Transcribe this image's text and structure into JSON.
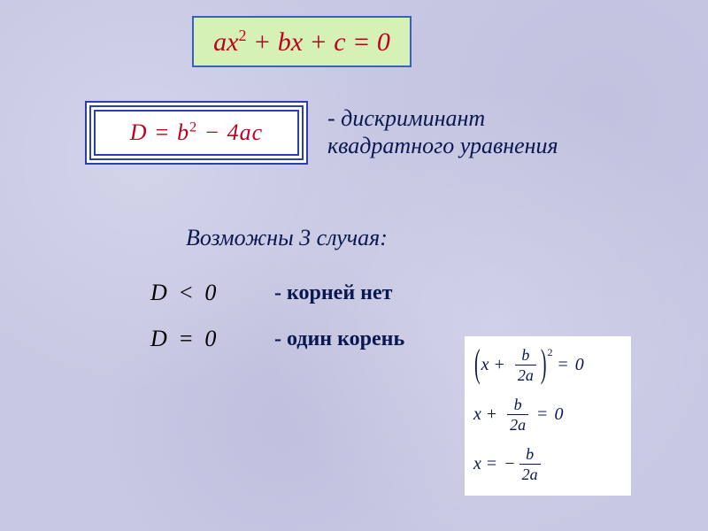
{
  "colors": {
    "background": "#c8c8e4",
    "box_green_bg": "#d5f1b6",
    "box_border": "#3b5fc0",
    "triple_border": "#2b3fb0",
    "equation_red": "#c00020",
    "text_dark_blue": "#0a1850",
    "white": "#ffffff",
    "black": "#000000"
  },
  "fonts": {
    "family": "Times New Roman",
    "eq1_size": 30,
    "eq2_size": 26,
    "body_size": 26,
    "case_label_size": 24,
    "formula_size": 20,
    "formula_frac_size": 18
  },
  "top_equation": {
    "latex": "ax^2 + bx + c = 0",
    "parts": {
      "a": "ax",
      "sup": "2",
      "rest": " + bx + c = 0"
    }
  },
  "discriminant_equation": {
    "latex": "D = b^2 - 4ac",
    "parts": {
      "lhs": "D = b",
      "sup": "2",
      "rest": " − 4ac"
    }
  },
  "discriminant_description": {
    "dash": "-   ",
    "line1": "дискриминант",
    "line2": "квадратного уравнения"
  },
  "cases_heading": "Возможны 3 случая:",
  "cases": [
    {
      "math": "D < 0",
      "label": "- корней нет"
    },
    {
      "math": "D = 0",
      "label": "- один корень"
    }
  ],
  "solution_box": {
    "lines": [
      {
        "type": "squared",
        "x": "x",
        "plus": "+",
        "num": "b",
        "den": "2a",
        "eq": "=",
        "rhs": "0",
        "exp": "2"
      },
      {
        "type": "plain",
        "x": "x",
        "plus": "+",
        "num": "b",
        "den": "2a",
        "eq": "=",
        "rhs": "0"
      },
      {
        "type": "answer",
        "x": "x",
        "eq": "=",
        "minus": "−",
        "num": "b",
        "den": "2a"
      }
    ]
  }
}
